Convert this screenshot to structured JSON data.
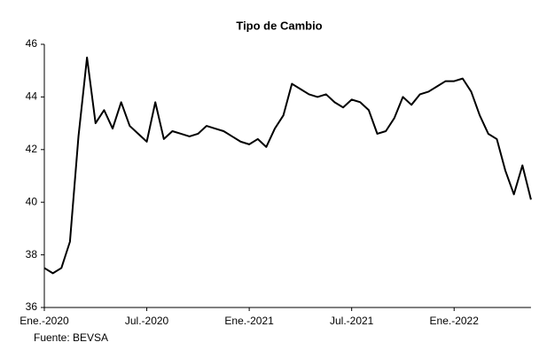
{
  "chart_data": {
    "type": "line",
    "title": "Tipo de Cambio",
    "source": "Fuente: BEVSA",
    "categories": [
      "Ene.-2020",
      null,
      null,
      null,
      null,
      null,
      null,
      null,
      null,
      null,
      null,
      null,
      "Jul.-2020",
      null,
      null,
      null,
      null,
      null,
      null,
      null,
      null,
      null,
      null,
      null,
      "Ene.-2021",
      null,
      null,
      null,
      null,
      null,
      null,
      null,
      null,
      null,
      null,
      null,
      "Jul.-2021",
      null,
      null,
      null,
      null,
      null,
      null,
      null,
      null,
      null,
      null,
      null,
      "Ene.-2022",
      null,
      null,
      null,
      null,
      null,
      null,
      null,
      null,
      null
    ],
    "series": [
      {
        "name": "Tipo de Cambio",
        "color": "#000000",
        "values": [
          37.5,
          37.3,
          37.5,
          38.5,
          42.5,
          45.5,
          43.0,
          43.5,
          42.8,
          43.8,
          42.9,
          42.6,
          42.3,
          43.8,
          42.4,
          42.7,
          42.6,
          42.5,
          42.6,
          42.9,
          42.8,
          42.7,
          42.5,
          42.3,
          42.2,
          42.4,
          42.1,
          42.8,
          43.3,
          44.5,
          44.3,
          44.1,
          44.0,
          44.1,
          43.8,
          43.6,
          43.9,
          43.8,
          43.5,
          42.6,
          42.7,
          43.2,
          44.0,
          43.7,
          44.1,
          44.2,
          44.4,
          44.6,
          44.6,
          44.7,
          44.2,
          43.3,
          42.6,
          42.4,
          41.2,
          40.3,
          41.4,
          40.1
        ]
      }
    ],
    "ylim": [
      36,
      46
    ],
    "yticks": [
      36,
      38,
      40,
      42,
      44,
      46
    ],
    "grid": false
  }
}
